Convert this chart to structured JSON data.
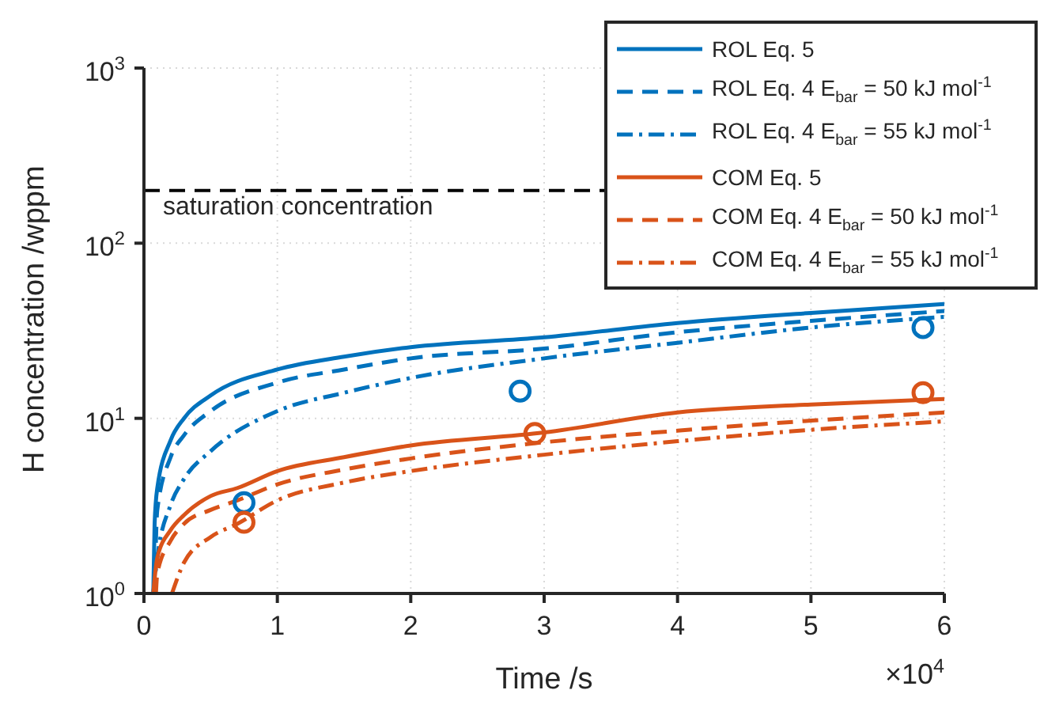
{
  "chart_data": {
    "type": "line",
    "xlabel": "Time /s",
    "ylabel": "H concentration /wppm",
    "log": "y",
    "grid": true,
    "legend": "top right",
    "marker": "none",
    "xlim": [
      0,
      6
    ],
    "xticks": [
      0,
      1,
      2,
      3,
      4,
      5,
      6
    ],
    "ylim": [
      1,
      1000
    ],
    "yticks": [
      {
        "value": 1,
        "label": "10$^{0}$"
      },
      {
        "value": 10,
        "label": "10$^{1}$"
      },
      {
        "value": 100,
        "label": "10$^{2}$"
      },
      {
        "value": 1000,
        "label": "10$^{3}$"
      }
    ],
    "ref_lines": [
      {
        "axis": "y",
        "value": 200,
        "label": "saturation concentration",
        "color": "#000000",
        "line_style": "dashed"
      }
    ],
    "annotations": [
      "×10$^{4}$"
    ],
    "series": [
      {
        "name": "ROL Eq. 5",
        "color": "#0072bd",
        "line_style": "solid",
        "x": [
          0.07,
          0.08,
          0.1,
          0.2,
          0.3,
          0.5,
          1,
          1.5,
          2,
          3,
          4,
          5,
          6
        ],
        "values": [
          1,
          2.5,
          4,
          7.5,
          10,
          13.5,
          19,
          22.5,
          25.5,
          29,
          35,
          40,
          45
        ]
      },
      {
        "name": "ROL Eq. 4 E$_{bar}$ = 50 kJ mol$^{-1}$",
        "color": "#0072bd",
        "line_style": "dashed",
        "x": [
          0.08,
          0.1,
          0.2,
          0.3,
          0.5,
          1,
          1.5,
          2,
          3,
          4,
          5,
          6
        ],
        "values": [
          1,
          3,
          6,
          8,
          11,
          16,
          19,
          22,
          25,
          31,
          36,
          41
        ]
      },
      {
        "name": "ROL Eq. 4 E$_{bar}$ = 55 kJ mol$^{-1}$",
        "color": "#0072bd",
        "line_style": "dashdot",
        "x": [
          0.07,
          0.1,
          0.2,
          0.3,
          0.5,
          1,
          1.5,
          2,
          3,
          4,
          5,
          6
        ],
        "values": [
          1,
          1.6,
          3.2,
          4.5,
          6.5,
          11,
          14,
          17,
          22,
          27,
          33,
          38
        ]
      },
      {
        "name": "COM Eq. 5",
        "color": "#d95319",
        "line_style": "solid",
        "x": [
          0.07,
          0.1,
          0.2,
          0.3,
          0.5,
          0.7,
          1,
          1.5,
          2,
          3,
          4,
          5,
          6
        ],
        "values": [
          1,
          1.6,
          2.3,
          2.8,
          3.6,
          4,
          5,
          6,
          7,
          8.3,
          10.8,
          12,
          12.9
        ]
      },
      {
        "name": "COM Eq. 4 E$_{bar}$ = 50 kJ mol$^{-1}$",
        "color": "#d95319",
        "line_style": "dashed",
        "x": [
          0.09,
          0.1,
          0.2,
          0.3,
          0.5,
          0.7,
          1,
          1.5,
          2,
          3,
          4,
          5,
          6
        ],
        "values": [
          1,
          1.3,
          2,
          2.5,
          3,
          3.4,
          4.2,
          5.1,
          5.9,
          7.3,
          8.5,
          9.7,
          10.8
        ]
      },
      {
        "name": "COM Eq. 4 E$_{bar}$ = 55 kJ mol$^{-1}$",
        "color": "#d95319",
        "line_style": "dashdot",
        "x": [
          0.21,
          0.3,
          0.5,
          0.7,
          1,
          1.5,
          2,
          3,
          4,
          5,
          6
        ],
        "values": [
          1,
          1.5,
          2.1,
          2.5,
          3.4,
          4.3,
          5,
          6.2,
          7.4,
          8.6,
          9.6
        ]
      },
      {
        "type": "scatter",
        "marker": "circle",
        "color": "#0072bd",
        "x": [
          0.75,
          2.82,
          5.84
        ],
        "values": [
          3.3,
          14.3,
          33
        ]
      },
      {
        "type": "scatter",
        "marker": "circle",
        "color": "#d95319",
        "x": [
          0.75,
          2.93,
          5.84
        ],
        "values": [
          2.55,
          8.2,
          14
        ]
      }
    ]
  }
}
